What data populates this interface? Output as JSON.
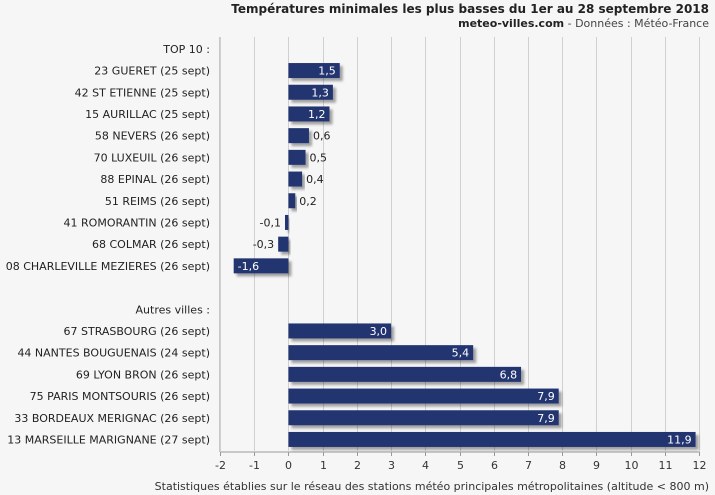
{
  "header": {
    "title": "Températures minimales les plus basses du 1er au 28 septembre 2018",
    "site": "meteo-villes.com",
    "source": " - Données : Météo-France"
  },
  "footer": {
    "note": "Statistiques établies sur le réseau des stations météo principales métropolitaines (altitude < 800 m)"
  },
  "chart_data": {
    "type": "bar",
    "orientation": "horizontal",
    "groups": [
      {
        "label": "TOP 10 :",
        "categories": [
          "23 GUERET (25 sept)",
          "42 ST ETIENNE (25 sept)",
          "15 AURILLAC (25 sept)",
          "58 NEVERS (26 sept)",
          "70 LUXEUIL (26 sept)",
          "88 EPINAL (26 sept)",
          "51 REIMS (26 sept)",
          "41 ROMORANTIN (26 sept)",
          "68 COLMAR (26 sept)",
          "08 CHARLEVILLE MEZIERES (26 sept)"
        ],
        "values": [
          1.5,
          1.3,
          1.2,
          0.6,
          0.5,
          0.4,
          0.2,
          -0.1,
          -0.3,
          -1.6
        ],
        "value_labels": [
          "1,5",
          "1,3",
          "1,2",
          "0,6",
          "0,5",
          "0,4",
          "0,2",
          "-0,1",
          "-0,3",
          "-1,6"
        ]
      },
      {
        "label": "Autres villes :",
        "categories": [
          "67 STRASBOURG (26 sept)",
          "44 NANTES BOUGUENAIS (24 sept)",
          "69 LYON BRON (26 sept)",
          "75 PARIS MONTSOURIS (26 sept)",
          "33 BORDEAUX MERIGNAC (26 sept)",
          "13 MARSEILLE MARIGNANE (27 sept)"
        ],
        "values": [
          3.0,
          5.4,
          6.8,
          7.9,
          7.9,
          11.9
        ],
        "value_labels": [
          "3,0",
          "5,4",
          "6,8",
          "7,9",
          "7,9",
          "11,9"
        ]
      }
    ],
    "xlim": [
      -2,
      12
    ],
    "xticks": [
      -2,
      -1,
      0,
      1,
      2,
      3,
      4,
      5,
      6,
      7,
      8,
      9,
      10,
      11,
      12
    ],
    "xtick_labels": [
      "-2",
      "-1",
      "0",
      "1",
      "2",
      "3",
      "4",
      "5",
      "6",
      "7",
      "8",
      "9",
      "10",
      "11",
      "12"
    ],
    "grid": "vertical",
    "bar_color": "#24346f",
    "grid_color": "#d0d0d0"
  }
}
